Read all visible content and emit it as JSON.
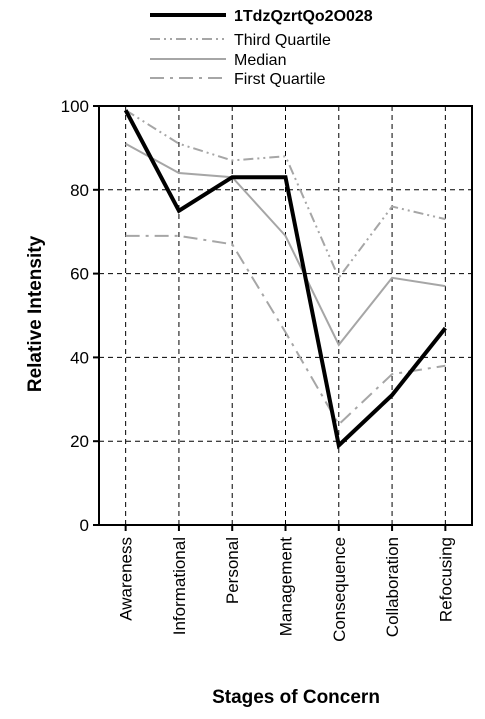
{
  "chart_data": {
    "type": "line",
    "title": "",
    "xlabel": "Stages of Concern",
    "ylabel": "Relative Intensity",
    "categories": [
      "Awareness",
      "Informational",
      "Personal",
      "Management",
      "Consequence",
      "Collaboration",
      "Refocusing"
    ],
    "ylim": [
      0,
      100
    ],
    "yticks": [
      "0",
      "20",
      "40",
      "60",
      "80",
      "100"
    ],
    "grid": true,
    "legend_position": "top",
    "series": [
      {
        "name": "1TdzQzrtQo2O028",
        "values": [
          99,
          75,
          83,
          83,
          19,
          31,
          47
        ],
        "color": "#000000",
        "style": "solid-bold"
      },
      {
        "name": "Third Quartile",
        "values": [
          99,
          91,
          87,
          88,
          59,
          76,
          73
        ],
        "color": "#a6a6a6",
        "style": "dash-dot-dot"
      },
      {
        "name": "Median",
        "values": [
          91,
          84,
          83,
          69,
          43,
          59,
          57
        ],
        "color": "#a6a6a6",
        "style": "solid"
      },
      {
        "name": "First Quartile",
        "values": [
          69,
          69,
          67,
          46,
          24,
          36,
          38
        ],
        "color": "#a6a6a6",
        "style": "long-dash-dot"
      }
    ]
  }
}
